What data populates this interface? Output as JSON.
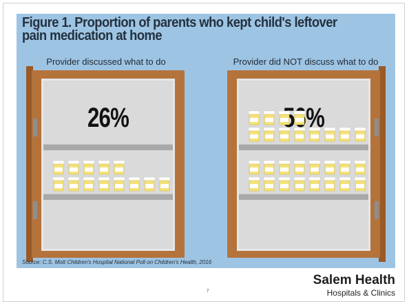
{
  "figure": {
    "title": "Figure 1. Proportion of parents who kept child's leftover pain medication at home",
    "source": "Source: C.S. Mott Children's Hospital National Poll on Children's Health, 2016"
  },
  "chart_data": {
    "type": "bar",
    "title": "Figure 1. Proportion of parents who kept child's leftover pain medication at home",
    "categories": [
      "Provider discussed what to do",
      "Provider did NOT discuss what to do"
    ],
    "values": [
      26,
      56
    ],
    "value_labels": [
      "26%",
      "56%"
    ],
    "unit": "%"
  },
  "footer": {
    "page_number": "7",
    "logo_main": "Salem Health",
    "logo_sub": "Hospitals & Clinics"
  },
  "colors": {
    "background": "#9ec4e3",
    "cabinet": "#b5733c",
    "bottle_body": "#f3e27a",
    "bottle_label": "#ffffff",
    "bottle_cap": "#ffffff"
  },
  "icons": [
    "pill-bottle-icon"
  ]
}
